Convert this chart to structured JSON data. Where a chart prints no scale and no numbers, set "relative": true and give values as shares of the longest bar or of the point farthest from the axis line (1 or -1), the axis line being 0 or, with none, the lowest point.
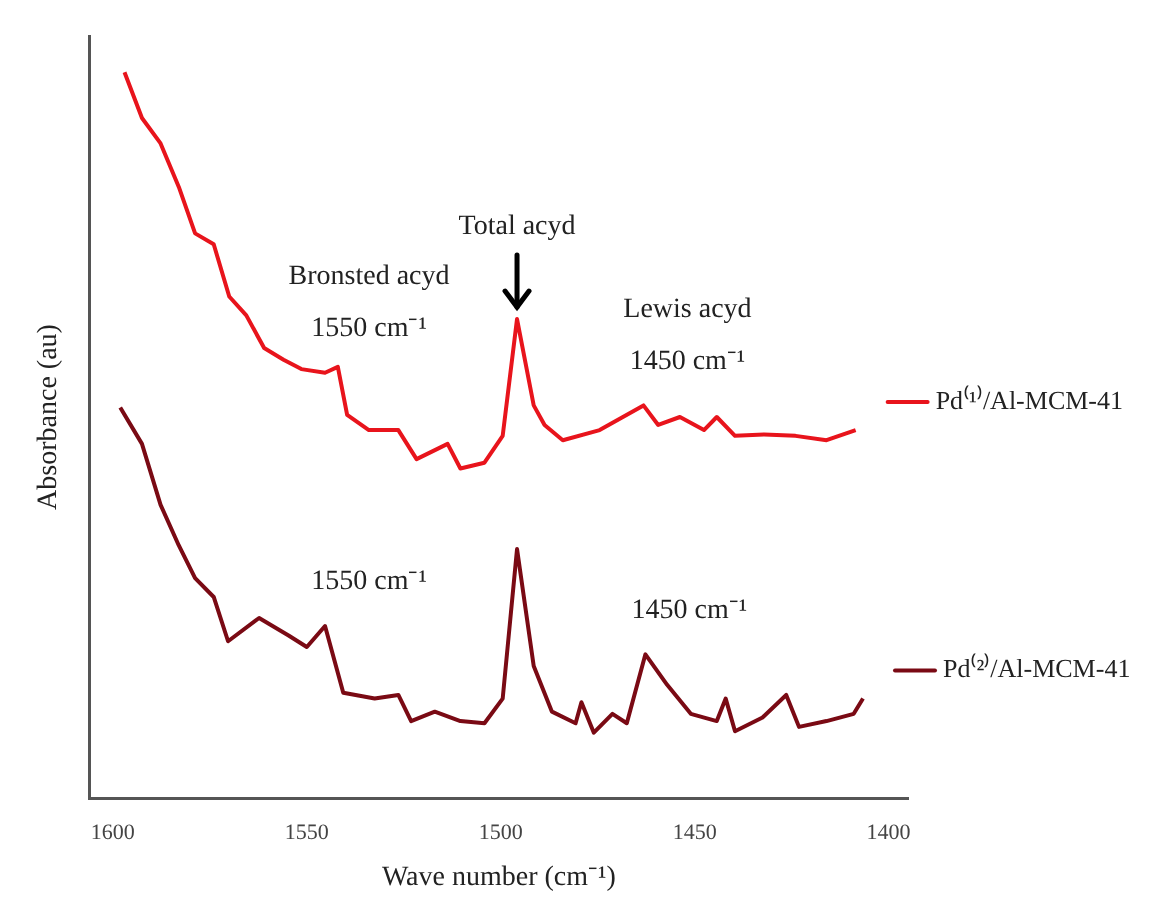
{
  "chart_data": {
    "type": "line",
    "relative": true,
    "tick_labels": "x",
    "xlabel": "Wave number (cm⁻¹)",
    "ylabel": "Absorbance (au)",
    "xlim": [
      1606,
      1395
    ],
    "xticks": [
      1600,
      1550,
      1500,
      1450,
      1400
    ],
    "series": [
      {
        "name": "Pd⁽¹⁾/Al-MCM-41",
        "color": "#e8141c",
        "x": [
          1597,
          1592.5,
          1587.7,
          1583,
          1578.8,
          1574,
          1570,
          1565.6,
          1561,
          1556,
          1551.4,
          1545.3,
          1542,
          1539.6,
          1534,
          1526.4,
          1521.7,
          1513.7,
          1510.4,
          1504.2,
          1499.5,
          1495.8,
          1491.5,
          1488.7,
          1484,
          1474.5,
          1463.2,
          1459.4,
          1453.8,
          1447.6,
          1444.3,
          1439.6,
          1432.1,
          1424,
          1416,
          1408.5
        ],
        "values": [
          1.0,
          0.937,
          0.902,
          0.842,
          0.778,
          0.763,
          0.691,
          0.665,
          0.62,
          0.604,
          0.591,
          0.586,
          0.594,
          0.528,
          0.507,
          0.507,
          0.467,
          0.488,
          0.454,
          0.462,
          0.499,
          0.66,
          0.541,
          0.514,
          0.493,
          0.507,
          0.541,
          0.514,
          0.525,
          0.507,
          0.525,
          0.499,
          0.501,
          0.499,
          0.493,
          0.507
        ]
      },
      {
        "name": "Pd⁽²⁾/Al-MCM-41",
        "color": "#7a0a14",
        "x": [
          1598.1,
          1592.5,
          1587.7,
          1583,
          1578.8,
          1574,
          1570.3,
          1562.3,
          1554.7,
          1550,
          1545.3,
          1540.6,
          1532.5,
          1526.4,
          1523.1,
          1517,
          1510.4,
          1504.2,
          1499.5,
          1495.8,
          1491.5,
          1486.8,
          1480.7,
          1479.2,
          1476,
          1471.2,
          1467.5,
          1462.7,
          1457.1,
          1451,
          1444.3,
          1442,
          1439.6,
          1432.5,
          1426.4,
          1423.1,
          1416,
          1409,
          1406.6
        ],
        "values": [
          0.538,
          0.488,
          0.404,
          0.348,
          0.303,
          0.277,
          0.216,
          0.248,
          0.224,
          0.208,
          0.237,
          0.145,
          0.137,
          0.142,
          0.106,
          0.119,
          0.106,
          0.103,
          0.137,
          0.343,
          0.182,
          0.119,
          0.103,
          0.132,
          0.09,
          0.116,
          0.103,
          0.198,
          0.156,
          0.116,
          0.106,
          0.137,
          0.092,
          0.111,
          0.142,
          0.098,
          0.106,
          0.116,
          0.137
        ]
      }
    ],
    "legend": "right",
    "annotations": [
      {
        "text": "Bronsted acyd",
        "x": 1545.3,
        "y": 0.586
      },
      {
        "text": "1550 cm⁻¹",
        "x": 1545.3,
        "y": 0.586
      },
      {
        "text": "Total acyd",
        "x": 1495.8,
        "y": 0.66
      },
      {
        "text": "Lewis acyd",
        "x": 1463.2,
        "y": 0.541
      },
      {
        "text": "1450 cm⁻¹",
        "x": 1463.2,
        "y": 0.541
      },
      {
        "text": "1550 cm⁻¹",
        "x": 1545.3,
        "y": 0.237
      },
      {
        "text": "1450 cm⁻¹",
        "x": 1462.7,
        "y": 0.198
      }
    ]
  }
}
